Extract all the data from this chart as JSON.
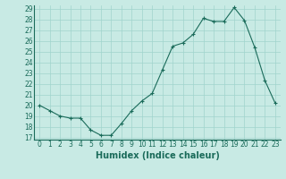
{
  "x": [
    0,
    1,
    2,
    3,
    4,
    5,
    6,
    7,
    8,
    9,
    10,
    11,
    12,
    13,
    14,
    15,
    16,
    17,
    18,
    19,
    20,
    21,
    22,
    23
  ],
  "y": [
    20,
    19.5,
    19,
    18.8,
    18.8,
    17.7,
    17.2,
    17.2,
    18.3,
    19.5,
    20.4,
    21.1,
    23.3,
    25.5,
    25.8,
    26.6,
    28.1,
    27.8,
    27.8,
    29.1,
    27.9,
    25.4,
    22.3,
    20.2
  ],
  "xlabel": "Humidex (Indice chaleur)",
  "ylim_min": 16.8,
  "ylim_max": 29.3,
  "xlim_min": -0.5,
  "xlim_max": 23.5,
  "yticks": [
    17,
    18,
    19,
    20,
    21,
    22,
    23,
    24,
    25,
    26,
    27,
    28,
    29
  ],
  "xticks": [
    0,
    1,
    2,
    3,
    4,
    5,
    6,
    7,
    8,
    9,
    10,
    11,
    12,
    13,
    14,
    15,
    16,
    17,
    18,
    19,
    20,
    21,
    22,
    23
  ],
  "line_color": "#1a6b5a",
  "marker": "+",
  "bg_color": "#c8eae4",
  "grid_color": "#a0d4cc",
  "tick_fontsize": 5.5,
  "xlabel_fontsize": 7.0,
  "linewidth": 0.8,
  "markersize": 3,
  "markeredgewidth": 0.8
}
